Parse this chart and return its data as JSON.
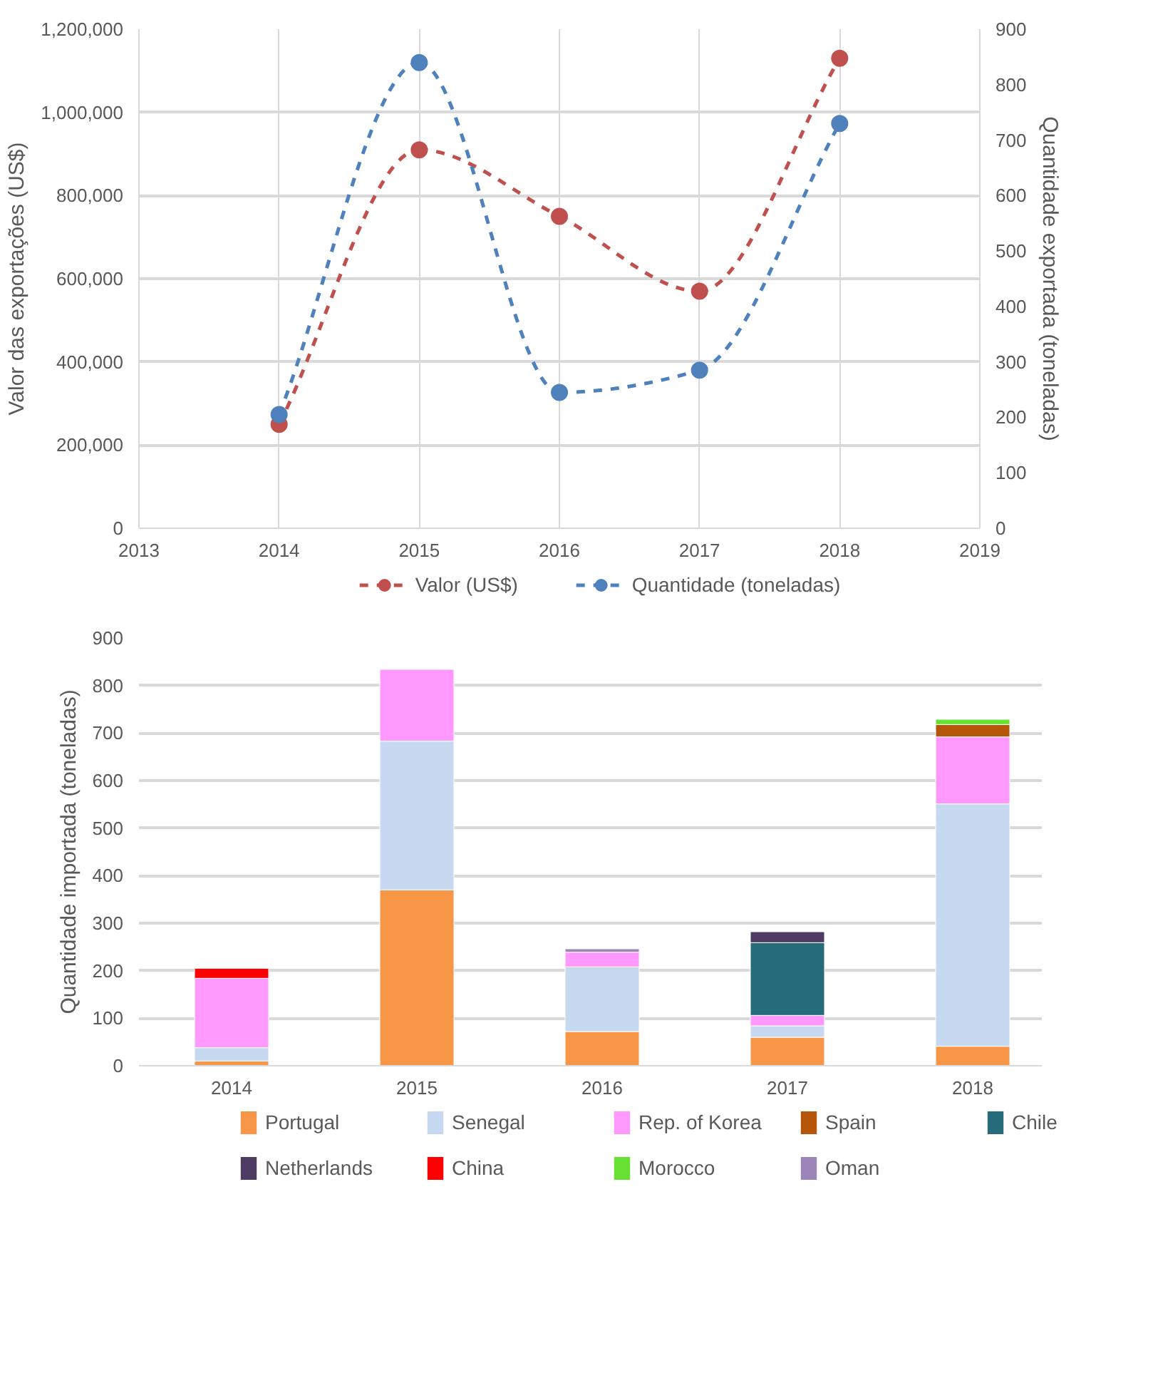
{
  "chart_data": [
    {
      "type": "line",
      "ylabel": "Valor das exportações (US$)",
      "y2label": "Quantidade exportada (toneladas)",
      "x": [
        2014,
        2015,
        2016,
        2017,
        2018
      ],
      "xlim": [
        2013,
        2019
      ],
      "xticks": [
        2013,
        2014,
        2015,
        2016,
        2017,
        2018,
        2019
      ],
      "ylim": [
        0,
        1200000
      ],
      "yticks": [
        0,
        {
          "value": 200000,
          "label": "200,000"
        },
        {
          "value": 400000,
          "label": "400,000"
        },
        {
          "value": 600000,
          "label": "600,000"
        },
        {
          "value": 800000,
          "label": "800,000"
        },
        {
          "value": 1000000,
          "label": "1,000,000"
        },
        {
          "value": 1200000,
          "label": "1,200,000"
        }
      ],
      "y2lim": [
        0,
        900
      ],
      "y2ticks": [
        0,
        100,
        200,
        300,
        400,
        500,
        600,
        700,
        800,
        900
      ],
      "series": [
        {
          "name": "Valor (US$)",
          "color": "#c0504d",
          "values": [
            250000,
            910000,
            750000,
            570000,
            1130000
          ]
        },
        {
          "name": "Quantidade (toneladas)",
          "color": "#4f81bd",
          "values": [
            205,
            840,
            245,
            285,
            730
          ],
          "axis": "y2"
        }
      ],
      "marker": "circle",
      "line_style": "dashed",
      "grid": true,
      "legend": "bottom"
    },
    {
      "type": "bar",
      "stacked": true,
      "ylabel": "Quantidade importada (toneladas)",
      "categories": [
        "2014",
        "2015",
        "2016",
        "2017",
        "2018"
      ],
      "ylim": [
        0,
        900
      ],
      "yticks": [
        0,
        100,
        200,
        300,
        400,
        500,
        600,
        700,
        800,
        900
      ],
      "series": [
        {
          "name": "Portugal",
          "color": "#f79646",
          "values": [
            10,
            370,
            72,
            60,
            41
          ]
        },
        {
          "name": "Senegal",
          "color": "#c6d9f0",
          "values": [
            28,
            313,
            136,
            24,
            510
          ]
        },
        {
          "name": "Rep. of Korea",
          "color": "#ff99ff",
          "values": [
            146,
            151,
            31,
            22,
            141
          ]
        },
        {
          "name": "Spain",
          "color": "#b6560a",
          "values": [
            null,
            null,
            null,
            null,
            26
          ]
        },
        {
          "name": "Chile",
          "color": "#266b7a",
          "values": [
            null,
            null,
            null,
            153,
            null
          ]
        },
        {
          "name": "Netherlands",
          "color": "#4e3b62",
          "values": [
            null,
            null,
            null,
            23,
            null
          ]
        },
        {
          "name": "China",
          "color": "#ff0000",
          "values": [
            21,
            null,
            null,
            null,
            null
          ]
        },
        {
          "name": "Morocco",
          "color": "#66e033",
          "values": [
            null,
            null,
            null,
            null,
            11
          ]
        },
        {
          "name": "Oman",
          "color": "#9c85b8",
          "values": [
            null,
            null,
            7,
            null,
            null
          ]
        }
      ],
      "grid": "y",
      "legend": "bottom"
    }
  ]
}
